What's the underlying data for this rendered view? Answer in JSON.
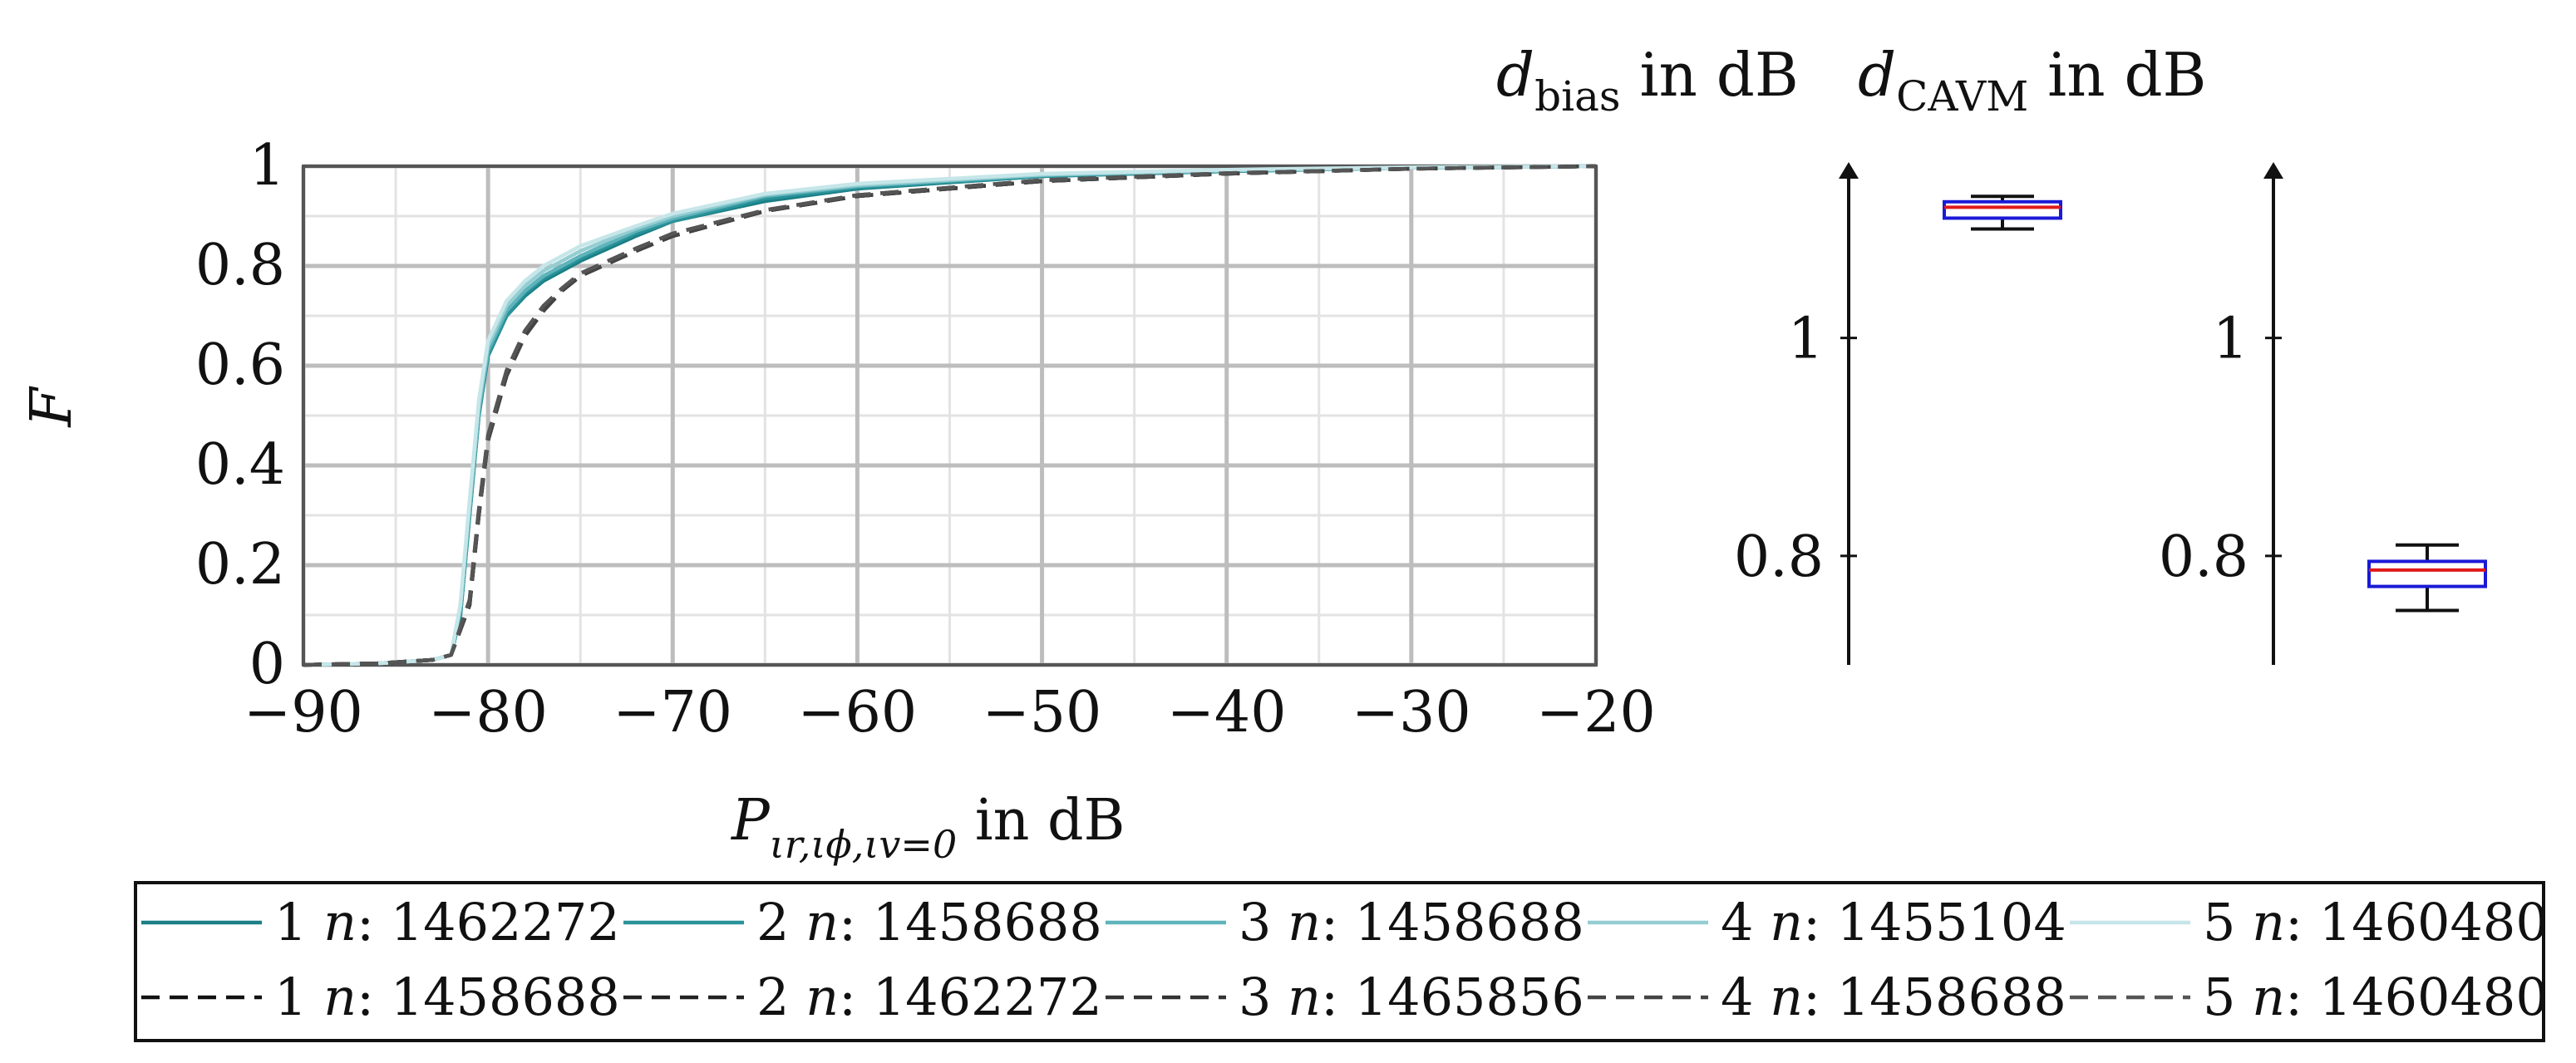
{
  "chart_data": [
    {
      "type": "line",
      "xlabel": "P_{ιr,ιϕ,ιv=0} in dB",
      "ylabel": "F",
      "xlim": [
        -90,
        -20
      ],
      "ylim": [
        0,
        1
      ],
      "xticks": [
        "−90",
        "−80",
        "−70",
        "−60",
        "−50",
        "−40",
        "−30",
        "−20"
      ],
      "yticks": [
        "0",
        "0.2",
        "0.4",
        "0.6",
        "0.8",
        "1"
      ],
      "grid": true,
      "legend_position": "bottom",
      "series": [
        {
          "name": "1 n: 1462272",
          "style": "solid",
          "color": "#1a7f86",
          "x": [
            -90,
            -86,
            -83,
            -82,
            -81.5,
            -81,
            -80.5,
            -80,
            -79,
            -78,
            -77,
            -75,
            -72,
            -70,
            -65,
            -60,
            -50,
            -40,
            -30,
            -20
          ],
          "y": [
            0,
            0.003,
            0.01,
            0.02,
            0.1,
            0.3,
            0.5,
            0.62,
            0.7,
            0.74,
            0.77,
            0.81,
            0.86,
            0.89,
            0.93,
            0.955,
            0.98,
            0.99,
            0.997,
            1
          ]
        },
        {
          "name": "2 n: 1458688",
          "style": "solid",
          "color": "#2a9299",
          "x": [
            -90,
            -86,
            -83,
            -82,
            -81.5,
            -81,
            -80.5,
            -80,
            -79,
            -78,
            -77,
            -75,
            -72,
            -70,
            -65,
            -60,
            -50,
            -40,
            -30,
            -20
          ],
          "y": [
            0,
            0.003,
            0.01,
            0.02,
            0.1,
            0.3,
            0.5,
            0.62,
            0.7,
            0.745,
            0.775,
            0.815,
            0.865,
            0.89,
            0.935,
            0.957,
            0.98,
            0.99,
            0.997,
            1
          ]
        },
        {
          "name": "3 n: 1458688",
          "style": "solid",
          "color": "#5fb3ba",
          "x": [
            -90,
            -86,
            -83,
            -82,
            -81.5,
            -81,
            -80.5,
            -80,
            -79,
            -78,
            -77,
            -75,
            -72,
            -70,
            -65,
            -60,
            -50,
            -40,
            -30,
            -20
          ],
          "y": [
            0,
            0.003,
            0.01,
            0.02,
            0.11,
            0.31,
            0.51,
            0.63,
            0.71,
            0.75,
            0.78,
            0.82,
            0.87,
            0.895,
            0.94,
            0.96,
            0.982,
            0.991,
            0.997,
            1
          ]
        },
        {
          "name": "4 n: 1455104",
          "style": "solid",
          "color": "#94cdd2",
          "x": [
            -90,
            -86,
            -83,
            -82,
            -81.5,
            -81,
            -80.5,
            -80,
            -79,
            -78,
            -77,
            -75,
            -72,
            -70,
            -65,
            -60,
            -50,
            -40,
            -30,
            -20
          ],
          "y": [
            0,
            0.003,
            0.01,
            0.02,
            0.12,
            0.32,
            0.52,
            0.64,
            0.72,
            0.76,
            0.79,
            0.83,
            0.875,
            0.9,
            0.943,
            0.962,
            0.983,
            0.992,
            0.997,
            1
          ]
        },
        {
          "name": "5 n: 1460480",
          "style": "solid",
          "color": "#c6e6e9",
          "x": [
            -90,
            -86,
            -83,
            -82,
            -81.5,
            -81,
            -80.5,
            -80,
            -79,
            -78,
            -77,
            -75,
            -72,
            -70,
            -65,
            -60,
            -50,
            -40,
            -30,
            -20
          ],
          "y": [
            0,
            0.003,
            0.01,
            0.02,
            0.12,
            0.33,
            0.53,
            0.65,
            0.73,
            0.77,
            0.8,
            0.84,
            0.88,
            0.905,
            0.945,
            0.965,
            0.985,
            0.993,
            0.998,
            1
          ]
        },
        {
          "name": "1 n: 1458688",
          "style": "dashed",
          "color": "#111111",
          "x": [
            -90,
            -86,
            -83,
            -82,
            -81,
            -80.5,
            -80,
            -79,
            -78,
            -77,
            -76,
            -75,
            -72,
            -70,
            -65,
            -60,
            -50,
            -40,
            -30,
            -20
          ],
          "y": [
            0,
            0.003,
            0.01,
            0.02,
            0.12,
            0.3,
            0.45,
            0.58,
            0.66,
            0.71,
            0.75,
            0.78,
            0.83,
            0.86,
            0.91,
            0.94,
            0.97,
            0.985,
            0.995,
            1
          ]
        },
        {
          "name": "2 n: 1462272",
          "style": "dashed",
          "color": "#222222",
          "x": [
            -90,
            -86,
            -83,
            -82,
            -81,
            -80.5,
            -80,
            -79,
            -78,
            -77,
            -76,
            -75,
            -72,
            -70,
            -65,
            -60,
            -50,
            -40,
            -30,
            -20
          ],
          "y": [
            0,
            0.003,
            0.01,
            0.02,
            0.12,
            0.3,
            0.45,
            0.58,
            0.66,
            0.71,
            0.75,
            0.78,
            0.83,
            0.86,
            0.91,
            0.94,
            0.97,
            0.985,
            0.995,
            1
          ]
        },
        {
          "name": "3 n: 1465856",
          "style": "dashed",
          "color": "#333333",
          "x": [
            -90,
            -86,
            -83,
            -82,
            -81,
            -80.5,
            -80,
            -79,
            -78,
            -77,
            -76,
            -75,
            -72,
            -70,
            -65,
            -60,
            -50,
            -40,
            -30,
            -20
          ],
          "y": [
            0,
            0.003,
            0.01,
            0.02,
            0.13,
            0.31,
            0.46,
            0.59,
            0.67,
            0.72,
            0.755,
            0.785,
            0.835,
            0.865,
            0.912,
            0.942,
            0.972,
            0.986,
            0.995,
            1
          ]
        },
        {
          "name": "4 n: 1458688",
          "style": "dashed",
          "color": "#444444",
          "x": [
            -90,
            -86,
            -83,
            -82,
            -81,
            -80.5,
            -80,
            -79,
            -78,
            -77,
            -76,
            -75,
            -72,
            -70,
            -65,
            -60,
            -50,
            -40,
            -30,
            -20
          ],
          "y": [
            0,
            0.003,
            0.01,
            0.02,
            0.12,
            0.3,
            0.45,
            0.58,
            0.66,
            0.71,
            0.75,
            0.78,
            0.83,
            0.86,
            0.91,
            0.94,
            0.97,
            0.985,
            0.995,
            1
          ]
        },
        {
          "name": "5 n: 1460480",
          "style": "dashed",
          "color": "#555555",
          "x": [
            -90,
            -86,
            -83,
            -82,
            -81,
            -80.5,
            -80,
            -79,
            -78,
            -77,
            -76,
            -75,
            -72,
            -70,
            -65,
            -60,
            -50,
            -40,
            -30,
            -20
          ],
          "y": [
            0,
            0.003,
            0.01,
            0.02,
            0.13,
            0.31,
            0.46,
            0.59,
            0.67,
            0.72,
            0.755,
            0.785,
            0.835,
            0.865,
            0.912,
            0.942,
            0.972,
            0.986,
            0.995,
            1
          ]
        }
      ]
    },
    {
      "type": "box",
      "title": "d_bias in dB",
      "ylim": [
        0.7,
        1.15
      ],
      "yticks": [
        "0.8",
        "1"
      ],
      "box": {
        "whisker_low": 1.1,
        "q1": 1.11,
        "median": 1.12,
        "q3": 1.125,
        "whisker_high": 1.13
      },
      "colors": {
        "box": "#1a1ad6",
        "median": "#e01a1a",
        "whisker": "#111111"
      }
    },
    {
      "type": "box",
      "title": "d_CAVM in dB",
      "ylim": [
        0.7,
        1.15
      ],
      "yticks": [
        "0.8",
        "1"
      ],
      "box": {
        "whisker_low": 0.75,
        "q1": 0.772,
        "median": 0.787,
        "q3": 0.795,
        "whisker_high": 0.81
      },
      "colors": {
        "box": "#1a1ad6",
        "median": "#e01a1a",
        "whisker": "#111111"
      }
    }
  ],
  "texts": {
    "ylabel": "F",
    "xlabel_main": "P",
    "xlabel_sub": "ιr,ιϕ,ιv=0",
    "xlabel_unit": " in dB",
    "box1_title_main": "d",
    "box1_title_sub": "bias",
    "box1_title_unit": " in dB",
    "box2_title_main": "d",
    "box2_title_sub": "CAVM",
    "box2_title_unit": " in dB"
  },
  "legend": {
    "n_prefix": "n",
    "row1": [
      {
        "idx": "1",
        "count": ": 1462272"
      },
      {
        "idx": "2",
        "count": ": 1458688"
      },
      {
        "idx": "3",
        "count": ": 1458688"
      },
      {
        "idx": "4",
        "count": ": 1455104"
      },
      {
        "idx": "5",
        "count": ": 1460480"
      }
    ],
    "row2": [
      {
        "idx": "1",
        "count": ": 1458688"
      },
      {
        "idx": "2",
        "count": ": 1462272"
      },
      {
        "idx": "3",
        "count": ": 1465856"
      },
      {
        "idx": "4",
        "count": ": 1458688"
      },
      {
        "idx": "5",
        "count": ": 1460480"
      }
    ]
  }
}
